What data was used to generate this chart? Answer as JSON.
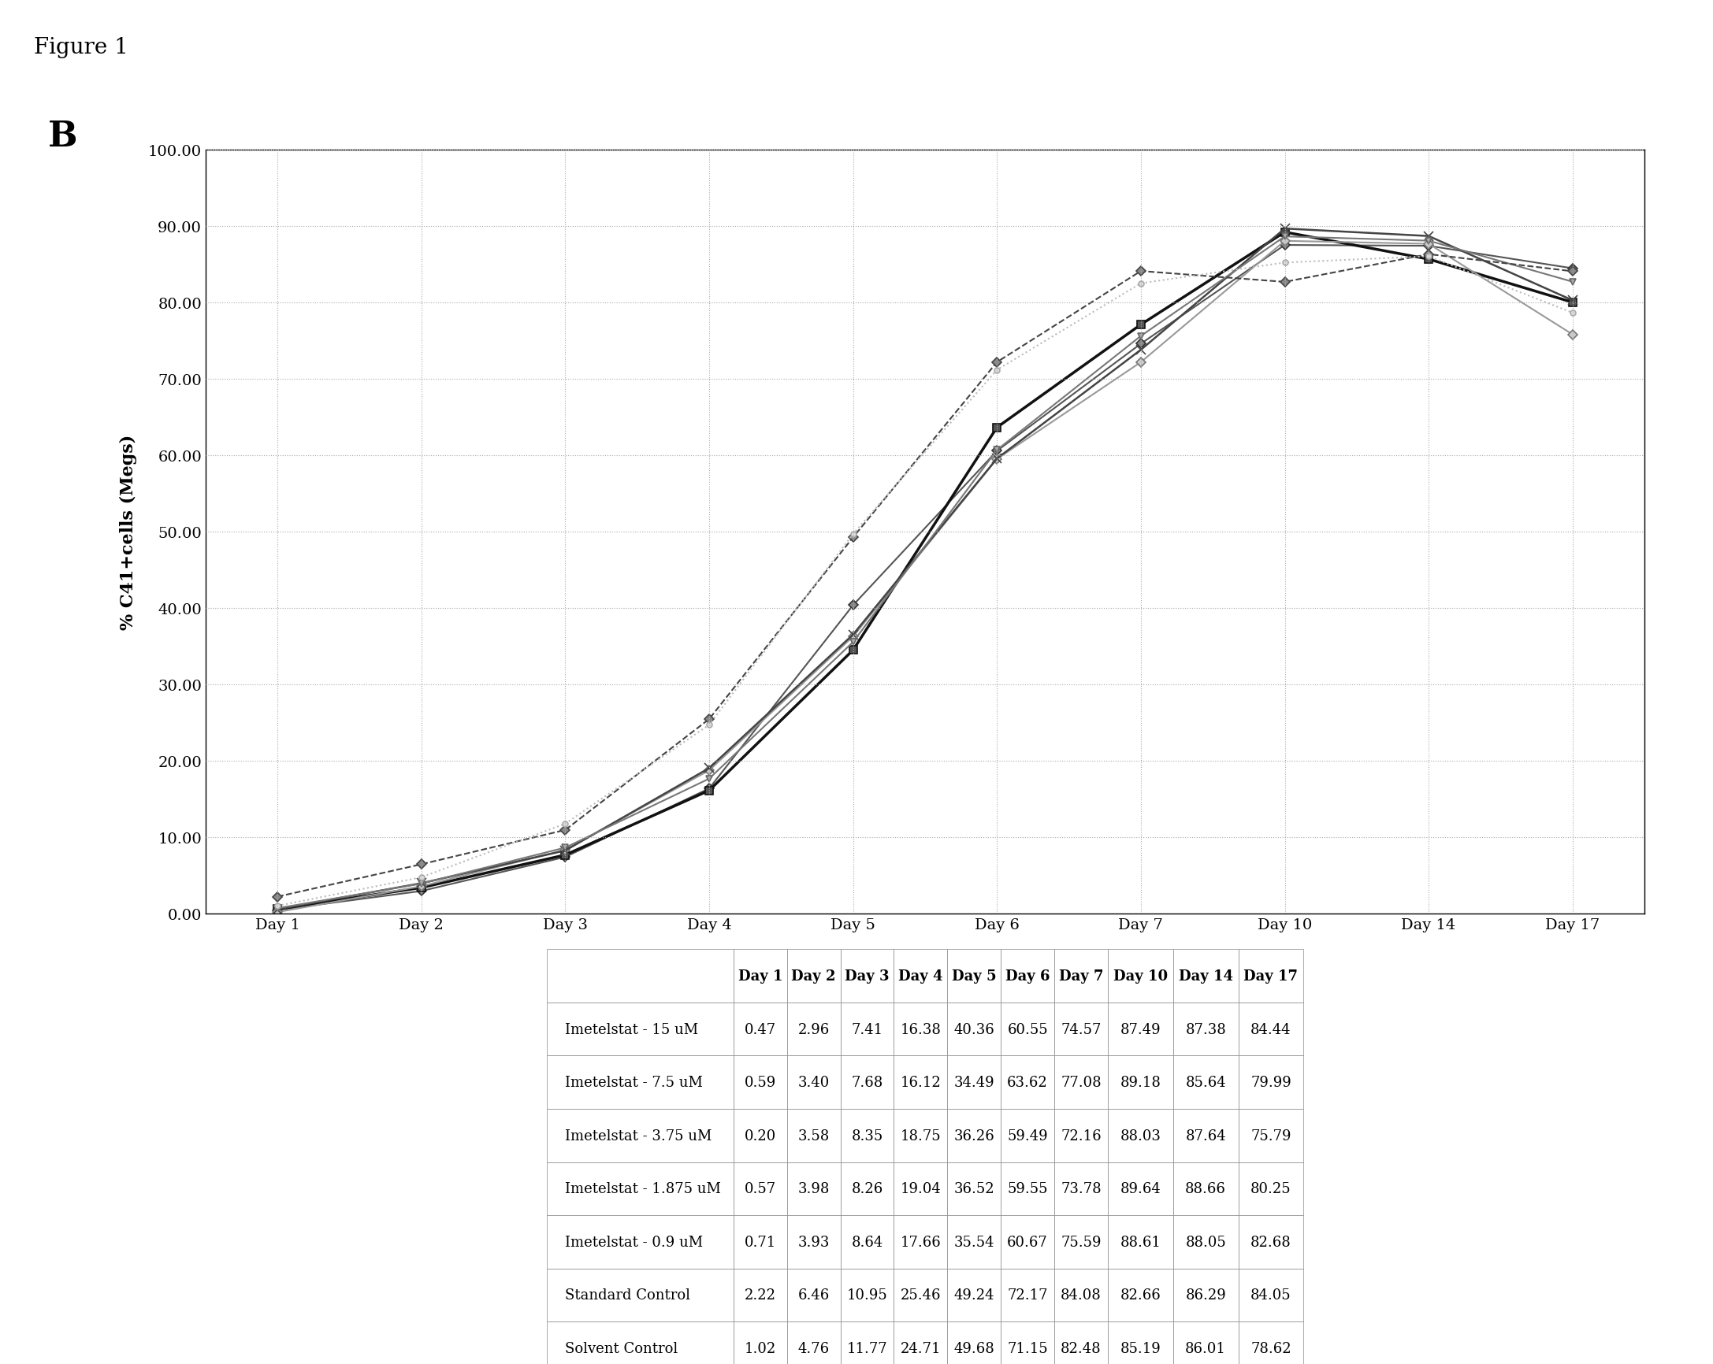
{
  "title": "Figure 1",
  "panel_label": "B",
  "ylabel": "% C41+cells (Megs)",
  "x_labels": [
    "Day 1",
    "Day 2",
    "Day 3",
    "Day 4",
    "Day 5",
    "Day 6",
    "Day 7",
    "Day 10",
    "Day 14",
    "Day 17"
  ],
  "x_positions": [
    1,
    2,
    3,
    4,
    5,
    6,
    7,
    10,
    14,
    17
  ],
  "ylim": [
    0,
    100
  ],
  "yticks": [
    0.0,
    10.0,
    20.0,
    30.0,
    40.0,
    50.0,
    60.0,
    70.0,
    80.0,
    90.0,
    100.0
  ],
  "series": [
    {
      "label": "Imetelstat - 15 uM",
      "values": [
        0.47,
        2.96,
        7.41,
        16.38,
        40.36,
        60.55,
        74.57,
        87.49,
        87.38,
        84.44
      ],
      "color": "#555555",
      "linewidth": 1.5,
      "linestyle": "-",
      "marker": "D",
      "markersize": 6,
      "markerfacecolor": "#888888",
      "markeredgecolor": "#333333"
    },
    {
      "label": "Imetelstat - 7.5 uM",
      "values": [
        0.59,
        3.4,
        7.68,
        16.12,
        34.49,
        63.62,
        77.08,
        89.18,
        85.64,
        79.99
      ],
      "color": "#111111",
      "linewidth": 2.5,
      "linestyle": "-",
      "marker": "s",
      "markersize": 7,
      "markerfacecolor": "#555555",
      "markeredgecolor": "#111111"
    },
    {
      "label": "Imetelstat - 3.75 uM",
      "values": [
        0.2,
        3.58,
        8.35,
        18.75,
        36.26,
        59.49,
        72.16,
        88.03,
        87.64,
        75.79
      ],
      "color": "#999999",
      "linewidth": 1.5,
      "linestyle": "-",
      "marker": "D",
      "markersize": 6,
      "markerfacecolor": "#cccccc",
      "markeredgecolor": "#777777"
    },
    {
      "label": "Imetelstat - 1.875 uM",
      "values": [
        0.57,
        3.98,
        8.26,
        19.04,
        36.52,
        59.55,
        73.78,
        89.64,
        88.66,
        80.25
      ],
      "color": "#444444",
      "linewidth": 1.8,
      "linestyle": "-",
      "marker": "x",
      "markersize": 8,
      "markerfacecolor": "#444444",
      "markeredgecolor": "#444444"
    },
    {
      "label": "Imetelstat - 0.9 uM",
      "values": [
        0.71,
        3.93,
        8.64,
        17.66,
        35.54,
        60.67,
        75.59,
        88.61,
        88.05,
        82.68
      ],
      "color": "#777777",
      "linewidth": 1.5,
      "linestyle": "-",
      "marker": "v",
      "markersize": 6,
      "markerfacecolor": "#aaaaaa",
      "markeredgecolor": "#666666"
    },
    {
      "label": "Standard Control",
      "values": [
        2.22,
        6.46,
        10.95,
        25.46,
        49.24,
        72.17,
        84.08,
        82.66,
        86.29,
        84.05
      ],
      "color": "#444444",
      "linewidth": 1.5,
      "linestyle": "--",
      "marker": "D",
      "markersize": 6,
      "markerfacecolor": "#888888",
      "markeredgecolor": "#444444"
    },
    {
      "label": "Solvent Control",
      "values": [
        1.02,
        4.76,
        11.77,
        24.71,
        49.68,
        71.15,
        82.48,
        85.19,
        86.01,
        78.62
      ],
      "color": "#bbbbbb",
      "linewidth": 1.5,
      "linestyle": ":",
      "marker": "o",
      "markersize": 5,
      "markerfacecolor": "#dddddd",
      "markeredgecolor": "#aaaaaa"
    }
  ],
  "table_col_labels": [
    "",
    "Day 1",
    "Day 2",
    "Day 3",
    "Day 4",
    "Day 5",
    "Day 6",
    "Day 7",
    "Day 10",
    "Day 14",
    "Day 17"
  ],
  "table_row_data": [
    [
      "Imetelstat - 15 uM",
      "0.47",
      "2.96",
      "7.41",
      "16.38",
      "40.36",
      "60.55",
      "74.57",
      "87.49",
      "87.38",
      "84.44"
    ],
    [
      "Imetelstat - 7.5 uM",
      "0.59",
      "3.40",
      "7.68",
      "16.12",
      "34.49",
      "63.62",
      "77.08",
      "89.18",
      "85.64",
      "79.99"
    ],
    [
      "Imetelstat - 3.75 uM",
      "0.20",
      "3.58",
      "8.35",
      "18.75",
      "36.26",
      "59.49",
      "72.16",
      "88.03",
      "87.64",
      "75.79"
    ],
    [
      "Imetelstat - 1.875 uM",
      "0.57",
      "3.98",
      "8.26",
      "19.04",
      "36.52",
      "59.55",
      "73.78",
      "89.64",
      "88.66",
      "80.25"
    ],
    [
      "Imetelstat - 0.9 uM",
      "0.71",
      "3.93",
      "8.64",
      "17.66",
      "35.54",
      "60.67",
      "75.59",
      "88.61",
      "88.05",
      "82.68"
    ],
    [
      "Standard Control",
      "2.22",
      "6.46",
      "10.95",
      "25.46",
      "49.24",
      "72.17",
      "84.08",
      "82.66",
      "86.29",
      "84.05"
    ],
    [
      "Solvent Control",
      "1.02",
      "4.76",
      "11.77",
      "24.71",
      "49.68",
      "71.15",
      "82.48",
      "85.19",
      "86.01",
      "78.62"
    ]
  ]
}
